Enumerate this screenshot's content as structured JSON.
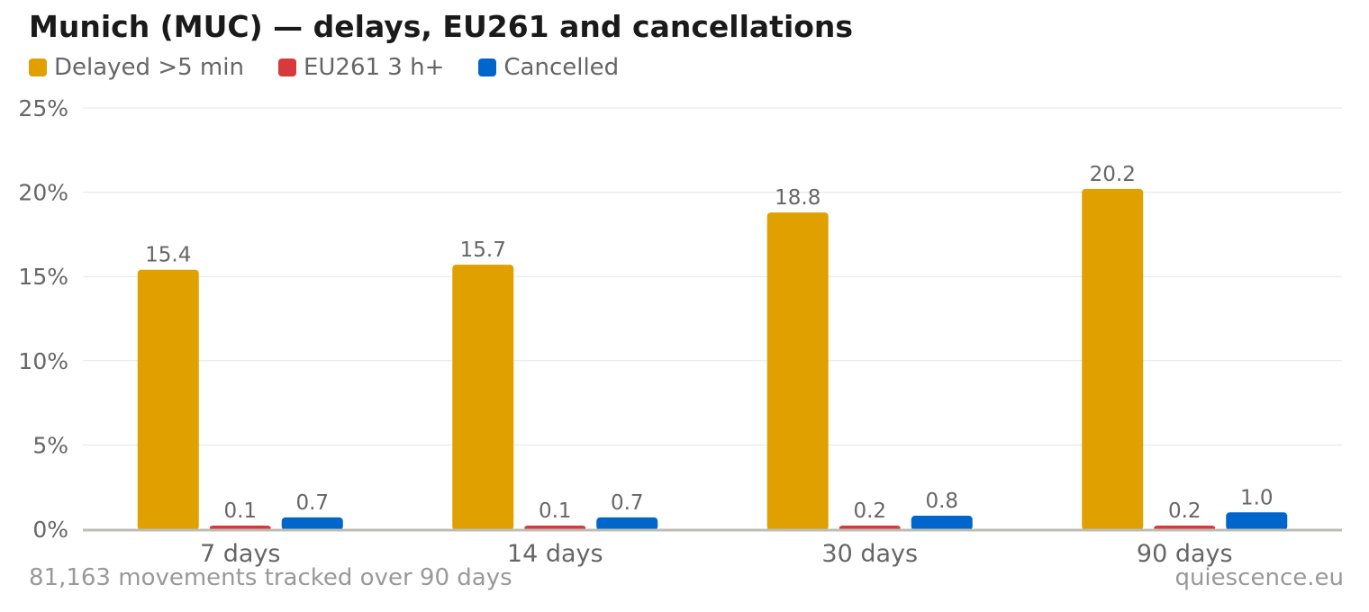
{
  "title": "Munich (MUC) — delays, EU261 and cancellations",
  "footer": {
    "note": "81,163 movements tracked over 90 days",
    "source": "quiescence.eu"
  },
  "colors": {
    "delayed": "#E0A000",
    "eu261": "#D63A3A",
    "cancelled": "#0066CC",
    "grid": "#e6e6e6",
    "axis": "#bdbdb5",
    "text": "#666666"
  },
  "chart_data": {
    "type": "bar",
    "categories": [
      "7 days",
      "14 days",
      "30 days",
      "90 days"
    ],
    "series": [
      {
        "name": "Delayed >5 min",
        "values": [
          15.4,
          15.7,
          18.8,
          20.2
        ],
        "labels": [
          "15.4",
          "15.7",
          "18.8",
          "20.2"
        ],
        "color": "#E0A000"
      },
      {
        "name": "EU261 3 h+",
        "values": [
          0.1,
          0.1,
          0.2,
          0.2
        ],
        "labels": [
          "0.1",
          "0.1",
          "0.2",
          "0.2"
        ],
        "color": "#D63A3A"
      },
      {
        "name": "Cancelled",
        "values": [
          0.7,
          0.7,
          0.8,
          1.0
        ],
        "labels": [
          "0.7",
          "0.7",
          "0.8",
          "1.0"
        ],
        "color": "#0066CC"
      }
    ],
    "ylim": [
      0,
      25
    ],
    "yticks": [
      0,
      5,
      10,
      15,
      20,
      25
    ],
    "ytick_labels": [
      "0%",
      "5%",
      "10%",
      "15%",
      "20%",
      "25%"
    ],
    "grid": true,
    "legend": "top-left"
  }
}
